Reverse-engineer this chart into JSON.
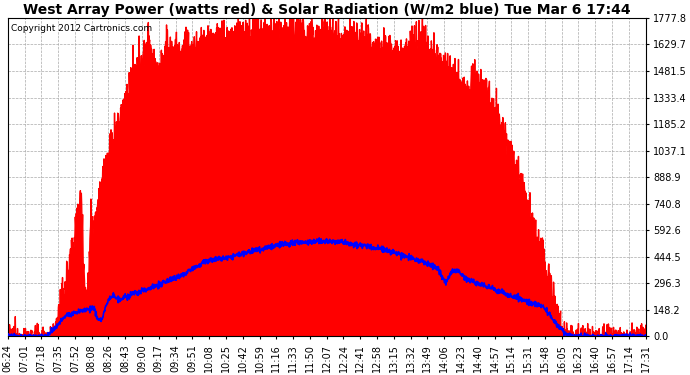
{
  "title": "West Array Power (watts red) & Solar Radiation (W/m2 blue) Tue Mar 6 17:44",
  "copyright": "Copyright 2012 Cartronics.com",
  "background_color": "#ffffff",
  "plot_bg_color": "#ffffff",
  "grid_color": "#aaaaaa",
  "y_ticks": [
    0.0,
    148.2,
    296.3,
    444.5,
    592.6,
    740.8,
    888.9,
    1037.1,
    1185.2,
    1333.4,
    1481.5,
    1629.7,
    1777.8
  ],
  "y_tick_labels": [
    "0.0",
    "148.2",
    "296.3",
    "444.5",
    "592.6",
    "740.8",
    "888.9",
    "1037.1",
    "1185.2",
    "1333.4",
    "1481.5",
    "1629.7",
    "1777.8"
  ],
  "x_tick_labels": [
    "06:24",
    "07:01",
    "07:18",
    "07:35",
    "07:52",
    "08:08",
    "08:26",
    "08:43",
    "09:00",
    "09:17",
    "09:34",
    "09:51",
    "10:08",
    "10:25",
    "10:42",
    "10:59",
    "11:16",
    "11:33",
    "11:50",
    "12:07",
    "12:24",
    "12:41",
    "12:58",
    "13:15",
    "13:32",
    "13:49",
    "14:06",
    "14:23",
    "14:40",
    "14:57",
    "15:14",
    "15:31",
    "15:48",
    "16:05",
    "16:23",
    "16:40",
    "16:57",
    "17:14",
    "17:31"
  ],
  "red_color": "#ff0000",
  "blue_color": "#0000ff",
  "title_fontsize": 10,
  "copyright_fontsize": 6.5,
  "tick_fontsize": 7,
  "ylim": [
    0,
    1777.8
  ]
}
